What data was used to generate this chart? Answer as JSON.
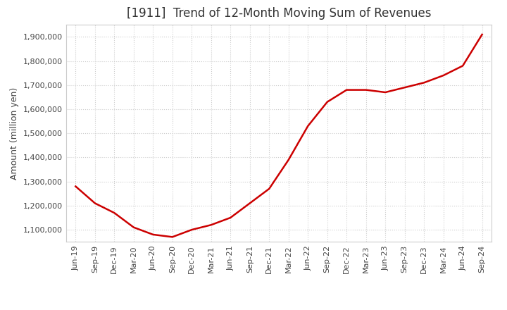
{
  "title": "[1911]  Trend of 12-Month Moving Sum of Revenues",
  "ylabel": "Amount (million yen)",
  "background_color": "#ffffff",
  "grid_color": "#cccccc",
  "line_color": "#cc0000",
  "line_width": 1.8,
  "x_labels": [
    "Jun-19",
    "Sep-19",
    "Dec-19",
    "Mar-20",
    "Jun-20",
    "Sep-20",
    "Dec-20",
    "Mar-21",
    "Jun-21",
    "Sep-21",
    "Dec-21",
    "Mar-22",
    "Jun-22",
    "Sep-22",
    "Dec-22",
    "Mar-23",
    "Jun-23",
    "Sep-23",
    "Dec-23",
    "Mar-24",
    "Jun-24",
    "Sep-24"
  ],
  "y_values": [
    1280000,
    1210000,
    1170000,
    1110000,
    1080000,
    1070000,
    1100000,
    1120000,
    1150000,
    1210000,
    1270000,
    1390000,
    1530000,
    1630000,
    1680000,
    1680000,
    1670000,
    1690000,
    1710000,
    1740000,
    1780000,
    1910000
  ],
  "ylim": [
    1050000,
    1950000
  ],
  "yticks": [
    1100000,
    1200000,
    1300000,
    1400000,
    1500000,
    1600000,
    1700000,
    1800000,
    1900000
  ],
  "title_fontsize": 12,
  "label_fontsize": 9,
  "tick_fontsize": 8
}
